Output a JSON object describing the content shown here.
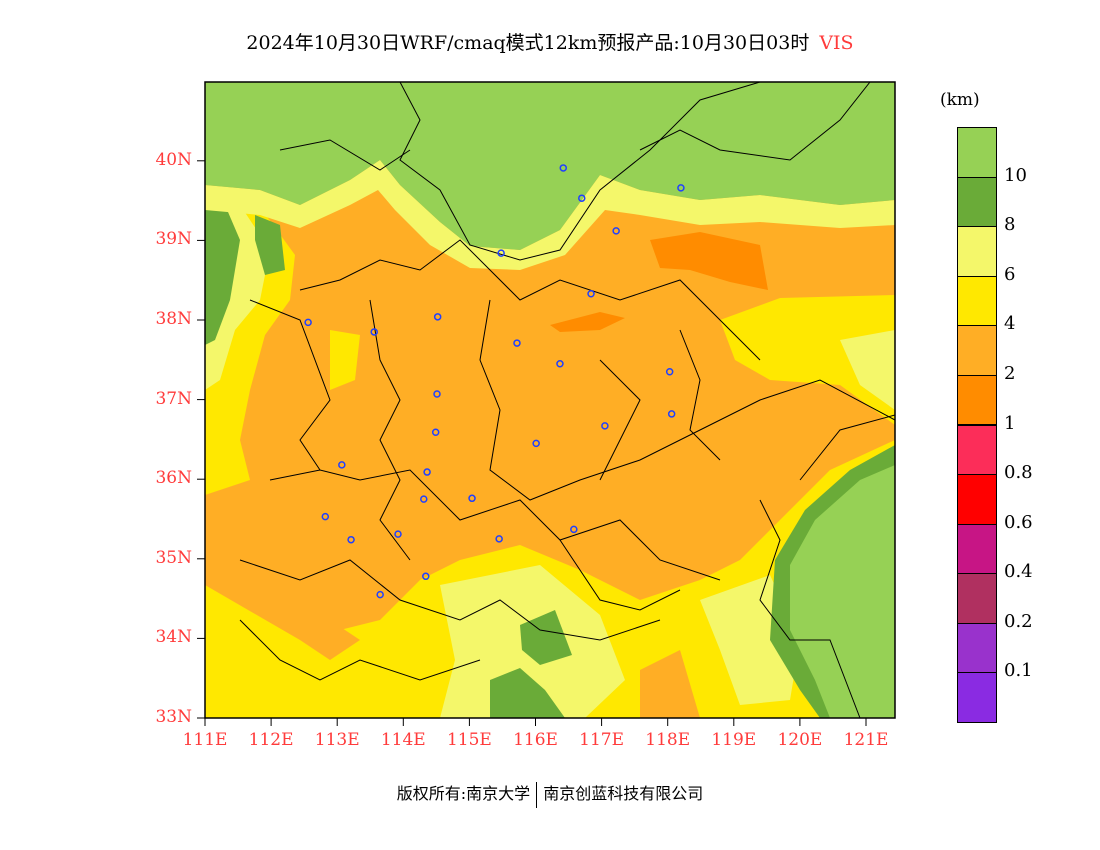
{
  "title": {
    "text": "2024年10月30日WRF/cmaq模式12km预报产品:10月30日03时",
    "variable": "VIS"
  },
  "colorbar": {
    "unit": "(km)",
    "colors": [
      "#8a2be2",
      "#9932cc",
      "#b03060",
      "#c71585",
      "#ff0000",
      "#fc2d59",
      "#ff8c00",
      "#ffae25",
      "#ffe800",
      "#f4f76a",
      "#6aab38",
      "#96d155"
    ],
    "labels": [
      "0.1",
      "0.2",
      "0.4",
      "0.6",
      "0.8",
      "1",
      "2",
      "4",
      "6",
      "8",
      "10"
    ]
  },
  "axes": {
    "lat_labels": [
      "33N",
      "34N",
      "35N",
      "36N",
      "37N",
      "38N",
      "39N",
      "40N"
    ],
    "lon_labels": [
      "111E",
      "112E",
      "113E",
      "114E",
      "115E",
      "116E",
      "117E",
      "118E",
      "119E",
      "120E",
      "121E"
    ],
    "lon_range": [
      111,
      121.45
    ],
    "lat_range": [
      33,
      40.97
    ]
  },
  "stations": [
    [
      116.42,
      39.91
    ],
    [
      116.7,
      39.53
    ],
    [
      118.2,
      39.66
    ],
    [
      117.22,
      39.12
    ],
    [
      115.48,
      38.84
    ],
    [
      116.84,
      38.33
    ],
    [
      112.56,
      37.97
    ],
    [
      113.56,
      37.85
    ],
    [
      114.52,
      38.04
    ],
    [
      115.72,
      37.71
    ],
    [
      116.37,
      37.45
    ],
    [
      118.03,
      37.35
    ],
    [
      114.51,
      37.07
    ],
    [
      118.06,
      36.82
    ],
    [
      114.49,
      36.59
    ],
    [
      117.05,
      36.67
    ],
    [
      116.01,
      36.45
    ],
    [
      113.07,
      36.18
    ],
    [
      114.36,
      36.09
    ],
    [
      114.31,
      35.75
    ],
    [
      115.04,
      35.76
    ],
    [
      112.82,
      35.53
    ],
    [
      113.92,
      35.31
    ],
    [
      113.21,
      35.24
    ],
    [
      115.45,
      35.25
    ],
    [
      116.58,
      35.37
    ],
    [
      114.34,
      34.78
    ],
    [
      113.65,
      34.55
    ]
  ],
  "footer": {
    "left": "版权所有:南京大学",
    "right": "南京创蓝科技有限公司"
  }
}
